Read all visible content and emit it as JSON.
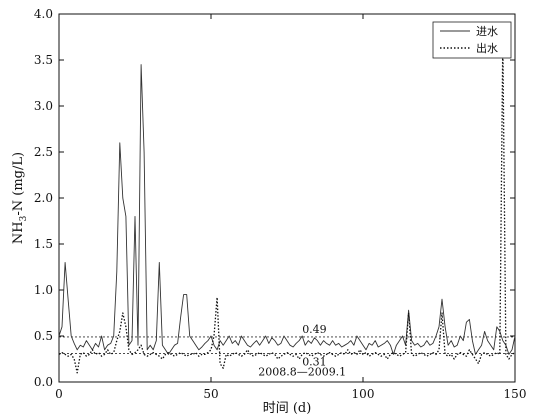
{
  "chart_data": {
    "type": "line",
    "title": "",
    "xlabel": "时间 (d)",
    "ylabel_main": "NH",
    "ylabel_sub": "3",
    "ylabel_rest": "-N (mg/L)",
    "xlim": [
      0,
      150
    ],
    "ylim": [
      0,
      4.0
    ],
    "x_ticks": [
      0,
      50,
      100,
      150
    ],
    "x_tick_labels": [
      "0",
      "50",
      "100",
      "150"
    ],
    "y_ticks": [
      0,
      0.5,
      1.0,
      1.5,
      2.0,
      2.5,
      3.0,
      3.5,
      4.0
    ],
    "y_tick_labels": [
      "0.0",
      "0.5",
      "1.0",
      "1.5",
      "2.0",
      "2.5",
      "3.0",
      "3.5",
      "4.0"
    ],
    "grid": false,
    "legend_position": "top-right",
    "series": [
      {
        "name": "进水",
        "style": "solid",
        "x": [
          0,
          1,
          2,
          3,
          4,
          5,
          6,
          7,
          8,
          9,
          10,
          11,
          12,
          13,
          14,
          15,
          16,
          17,
          18,
          19,
          20,
          21,
          22,
          23,
          24,
          25,
          26,
          27,
          28,
          29,
          30,
          31,
          32,
          33,
          34,
          35,
          36,
          37,
          38,
          39,
          40,
          41,
          42,
          43,
          44,
          45,
          46,
          47,
          48,
          49,
          50,
          51,
          52,
          53,
          54,
          55,
          56,
          57,
          58,
          59,
          60,
          61,
          62,
          63,
          64,
          65,
          66,
          67,
          68,
          69,
          70,
          71,
          72,
          73,
          74,
          75,
          76,
          77,
          78,
          79,
          80,
          81,
          82,
          83,
          84,
          85,
          86,
          87,
          88,
          89,
          90,
          91,
          92,
          93,
          94,
          95,
          96,
          97,
          98,
          99,
          100,
          101,
          102,
          103,
          104,
          105,
          106,
          107,
          108,
          109,
          110,
          111,
          112,
          113,
          114,
          115,
          116,
          117,
          118,
          119,
          120,
          121,
          122,
          123,
          124,
          125,
          126,
          127,
          128,
          129,
          130,
          131,
          132,
          133,
          134,
          135,
          136,
          137,
          138,
          139,
          140,
          141,
          142,
          143,
          144,
          145,
          146,
          147,
          148,
          149,
          150
        ],
        "values": [
          0.5,
          0.6,
          1.3,
          0.9,
          0.5,
          0.42,
          0.35,
          0.4,
          0.38,
          0.45,
          0.4,
          0.35,
          0.42,
          0.38,
          0.5,
          0.35,
          0.4,
          0.42,
          0.5,
          1.2,
          2.6,
          2.0,
          1.8,
          0.4,
          0.45,
          1.8,
          0.4,
          3.45,
          2.5,
          0.35,
          0.4,
          0.35,
          0.45,
          1.3,
          0.4,
          0.35,
          0.3,
          0.35,
          0.4,
          0.42,
          0.7,
          0.95,
          0.95,
          0.5,
          0.45,
          0.4,
          0.35,
          0.38,
          0.42,
          0.45,
          0.5,
          0.4,
          0.35,
          0.45,
          0.4,
          0.45,
          0.5,
          0.42,
          0.45,
          0.4,
          0.5,
          0.45,
          0.4,
          0.38,
          0.42,
          0.45,
          0.4,
          0.45,
          0.5,
          0.42,
          0.48,
          0.45,
          0.4,
          0.42,
          0.5,
          0.45,
          0.4,
          0.38,
          0.42,
          0.45,
          0.5,
          0.4,
          0.45,
          0.42,
          0.48,
          0.45,
          0.4,
          0.45,
          0.42,
          0.4,
          0.45,
          0.4,
          0.42,
          0.38,
          0.4,
          0.42,
          0.45,
          0.4,
          0.5,
          0.45,
          0.4,
          0.35,
          0.42,
          0.4,
          0.45,
          0.38,
          0.4,
          0.42,
          0.45,
          0.4,
          0.3,
          0.4,
          0.45,
          0.5,
          0.4,
          0.78,
          0.45,
          0.4,
          0.42,
          0.38,
          0.4,
          0.45,
          0.4,
          0.42,
          0.5,
          0.6,
          0.9,
          0.6,
          0.4,
          0.45,
          0.38,
          0.4,
          0.5,
          0.45,
          0.65,
          0.68,
          0.45,
          0.3,
          0.35,
          0.4,
          0.55,
          0.45,
          0.4,
          0.35,
          0.6,
          0.55,
          0.45,
          0.4,
          0.3,
          0.35,
          0.5
        ]
      },
      {
        "name": "出水",
        "style": "dotted",
        "x": [
          0,
          1,
          2,
          3,
          4,
          5,
          6,
          7,
          8,
          9,
          10,
          11,
          12,
          13,
          14,
          15,
          16,
          17,
          18,
          19,
          20,
          21,
          22,
          23,
          24,
          25,
          26,
          27,
          28,
          29,
          30,
          31,
          32,
          33,
          34,
          35,
          36,
          37,
          38,
          39,
          40,
          41,
          42,
          43,
          44,
          45,
          46,
          47,
          48,
          49,
          50,
          51,
          52,
          53,
          54,
          55,
          56,
          57,
          58,
          59,
          60,
          61,
          62,
          63,
          64,
          65,
          66,
          67,
          68,
          69,
          70,
          71,
          72,
          73,
          74,
          75,
          76,
          77,
          78,
          79,
          80,
          81,
          82,
          83,
          84,
          85,
          86,
          87,
          88,
          89,
          90,
          91,
          92,
          93,
          94,
          95,
          96,
          97,
          98,
          99,
          100,
          101,
          102,
          103,
          104,
          105,
          106,
          107,
          108,
          109,
          110,
          111,
          112,
          113,
          114,
          115,
          116,
          117,
          118,
          119,
          120,
          121,
          122,
          123,
          124,
          125,
          126,
          127,
          128,
          129,
          130,
          131,
          132,
          133,
          134,
          135,
          136,
          137,
          138,
          139,
          140,
          141,
          142,
          143,
          144,
          145,
          146,
          147,
          148,
          149,
          150
        ],
        "values": [
          0.3,
          0.32,
          0.3,
          0.28,
          0.3,
          0.25,
          0.1,
          0.3,
          0.32,
          0.28,
          0.3,
          0.35,
          0.3,
          0.32,
          0.28,
          0.3,
          0.35,
          0.3,
          0.32,
          0.45,
          0.55,
          0.75,
          0.6,
          0.35,
          0.3,
          0.32,
          0.35,
          0.4,
          0.3,
          0.28,
          0.3,
          0.32,
          0.3,
          0.28,
          0.25,
          0.3,
          0.32,
          0.3,
          0.28,
          0.3,
          0.32,
          0.3,
          0.28,
          0.3,
          0.3,
          0.32,
          0.28,
          0.3,
          0.3,
          0.32,
          0.35,
          0.5,
          0.92,
          0.2,
          0.15,
          0.3,
          0.28,
          0.3,
          0.32,
          0.3,
          0.28,
          0.3,
          0.35,
          0.3,
          0.28,
          0.3,
          0.32,
          0.3,
          0.28,
          0.3,
          0.32,
          0.3,
          0.25,
          0.28,
          0.3,
          0.32,
          0.3,
          0.28,
          0.3,
          0.25,
          0.3,
          0.32,
          0.3,
          0.28,
          0.3,
          0.32,
          0.3,
          0.28,
          0.3,
          0.32,
          0.3,
          0.28,
          0.3,
          0.32,
          0.3,
          0.35,
          0.3,
          0.32,
          0.3,
          0.35,
          0.3,
          0.32,
          0.28,
          0.3,
          0.32,
          0.3,
          0.28,
          0.3,
          0.25,
          0.3,
          0.32,
          0.3,
          0.28,
          0.3,
          0.32,
          0.75,
          0.3,
          0.28,
          0.3,
          0.32,
          0.3,
          0.28,
          0.3,
          0.32,
          0.3,
          0.35,
          0.75,
          0.3,
          0.28,
          0.3,
          0.25,
          0.3,
          0.32,
          0.3,
          0.28,
          0.35,
          0.3,
          0.25,
          0.2,
          0.3,
          0.32,
          0.3,
          0.28,
          0.3,
          0.32,
          0.3,
          3.7,
          0.3,
          0.25,
          0.3,
          0.32
        ]
      }
    ],
    "reference_lines": [
      {
        "y": 0.49,
        "label": "0.49",
        "label_x": 80
      },
      {
        "y": 0.31,
        "label": "0.31",
        "label_x": 80
      }
    ],
    "annotations": [
      {
        "text": "2008.8—2009.1",
        "x": 80,
        "y": 0.07
      }
    ]
  }
}
